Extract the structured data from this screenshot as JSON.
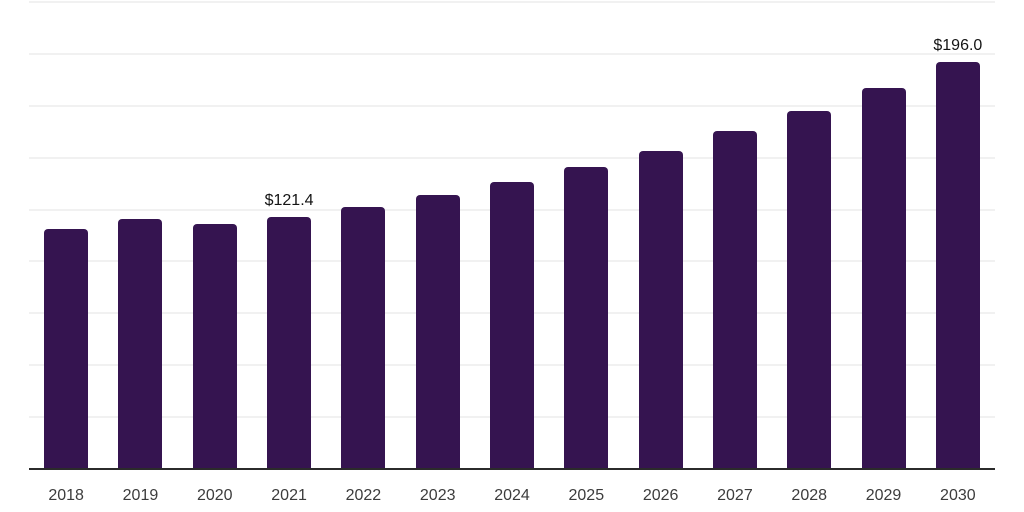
{
  "chart_data": {
    "type": "bar",
    "title": "",
    "xlabel": "",
    "ylabel": "",
    "categories": [
      "2018",
      "2019",
      "2020",
      "2021",
      "2022",
      "2023",
      "2024",
      "2025",
      "2026",
      "2027",
      "2028",
      "2029",
      "2030"
    ],
    "values": [
      115.4,
      120.3,
      117.9,
      121.4,
      126.3,
      132.0,
      138.2,
      145.3,
      153.2,
      162.8,
      172.4,
      183.4,
      196.0
    ],
    "data_labels": [
      {
        "category": "2021",
        "text": "$121.4"
      },
      {
        "category": "2030",
        "text": "$196.0"
      }
    ],
    "ylim": [
      0,
      225
    ],
    "grid_step": 25,
    "grid": true,
    "legend": false,
    "y_tick_labels_visible": false,
    "colors": {
      "bar": "#351450",
      "axis_line": "#2b2b2b",
      "gridline": "#f1f1f1",
      "tick_label": "#3c3c3c",
      "value_label": "#141414",
      "background": "#ffffff"
    }
  }
}
